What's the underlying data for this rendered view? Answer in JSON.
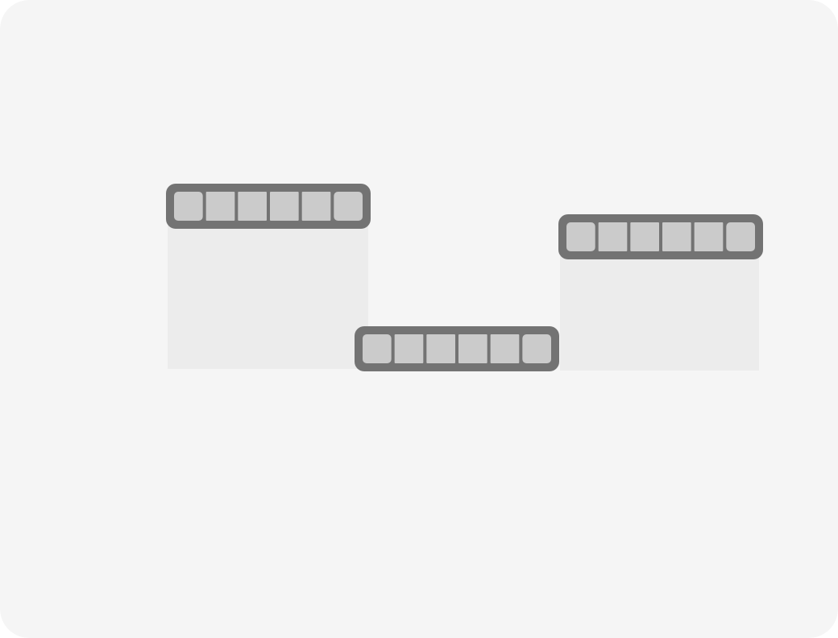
{
  "colors": {
    "background": "#f5f5f5",
    "panel_fill": "#ececec",
    "tray_frame": "#737373",
    "cell_fill": "#cbcbcb"
  },
  "trays": [
    {
      "name": "left",
      "cell_count": 6,
      "has_panel": true
    },
    {
      "name": "middle",
      "cell_count": 6,
      "has_panel": false
    },
    {
      "name": "right",
      "cell_count": 6,
      "has_panel": true
    }
  ]
}
